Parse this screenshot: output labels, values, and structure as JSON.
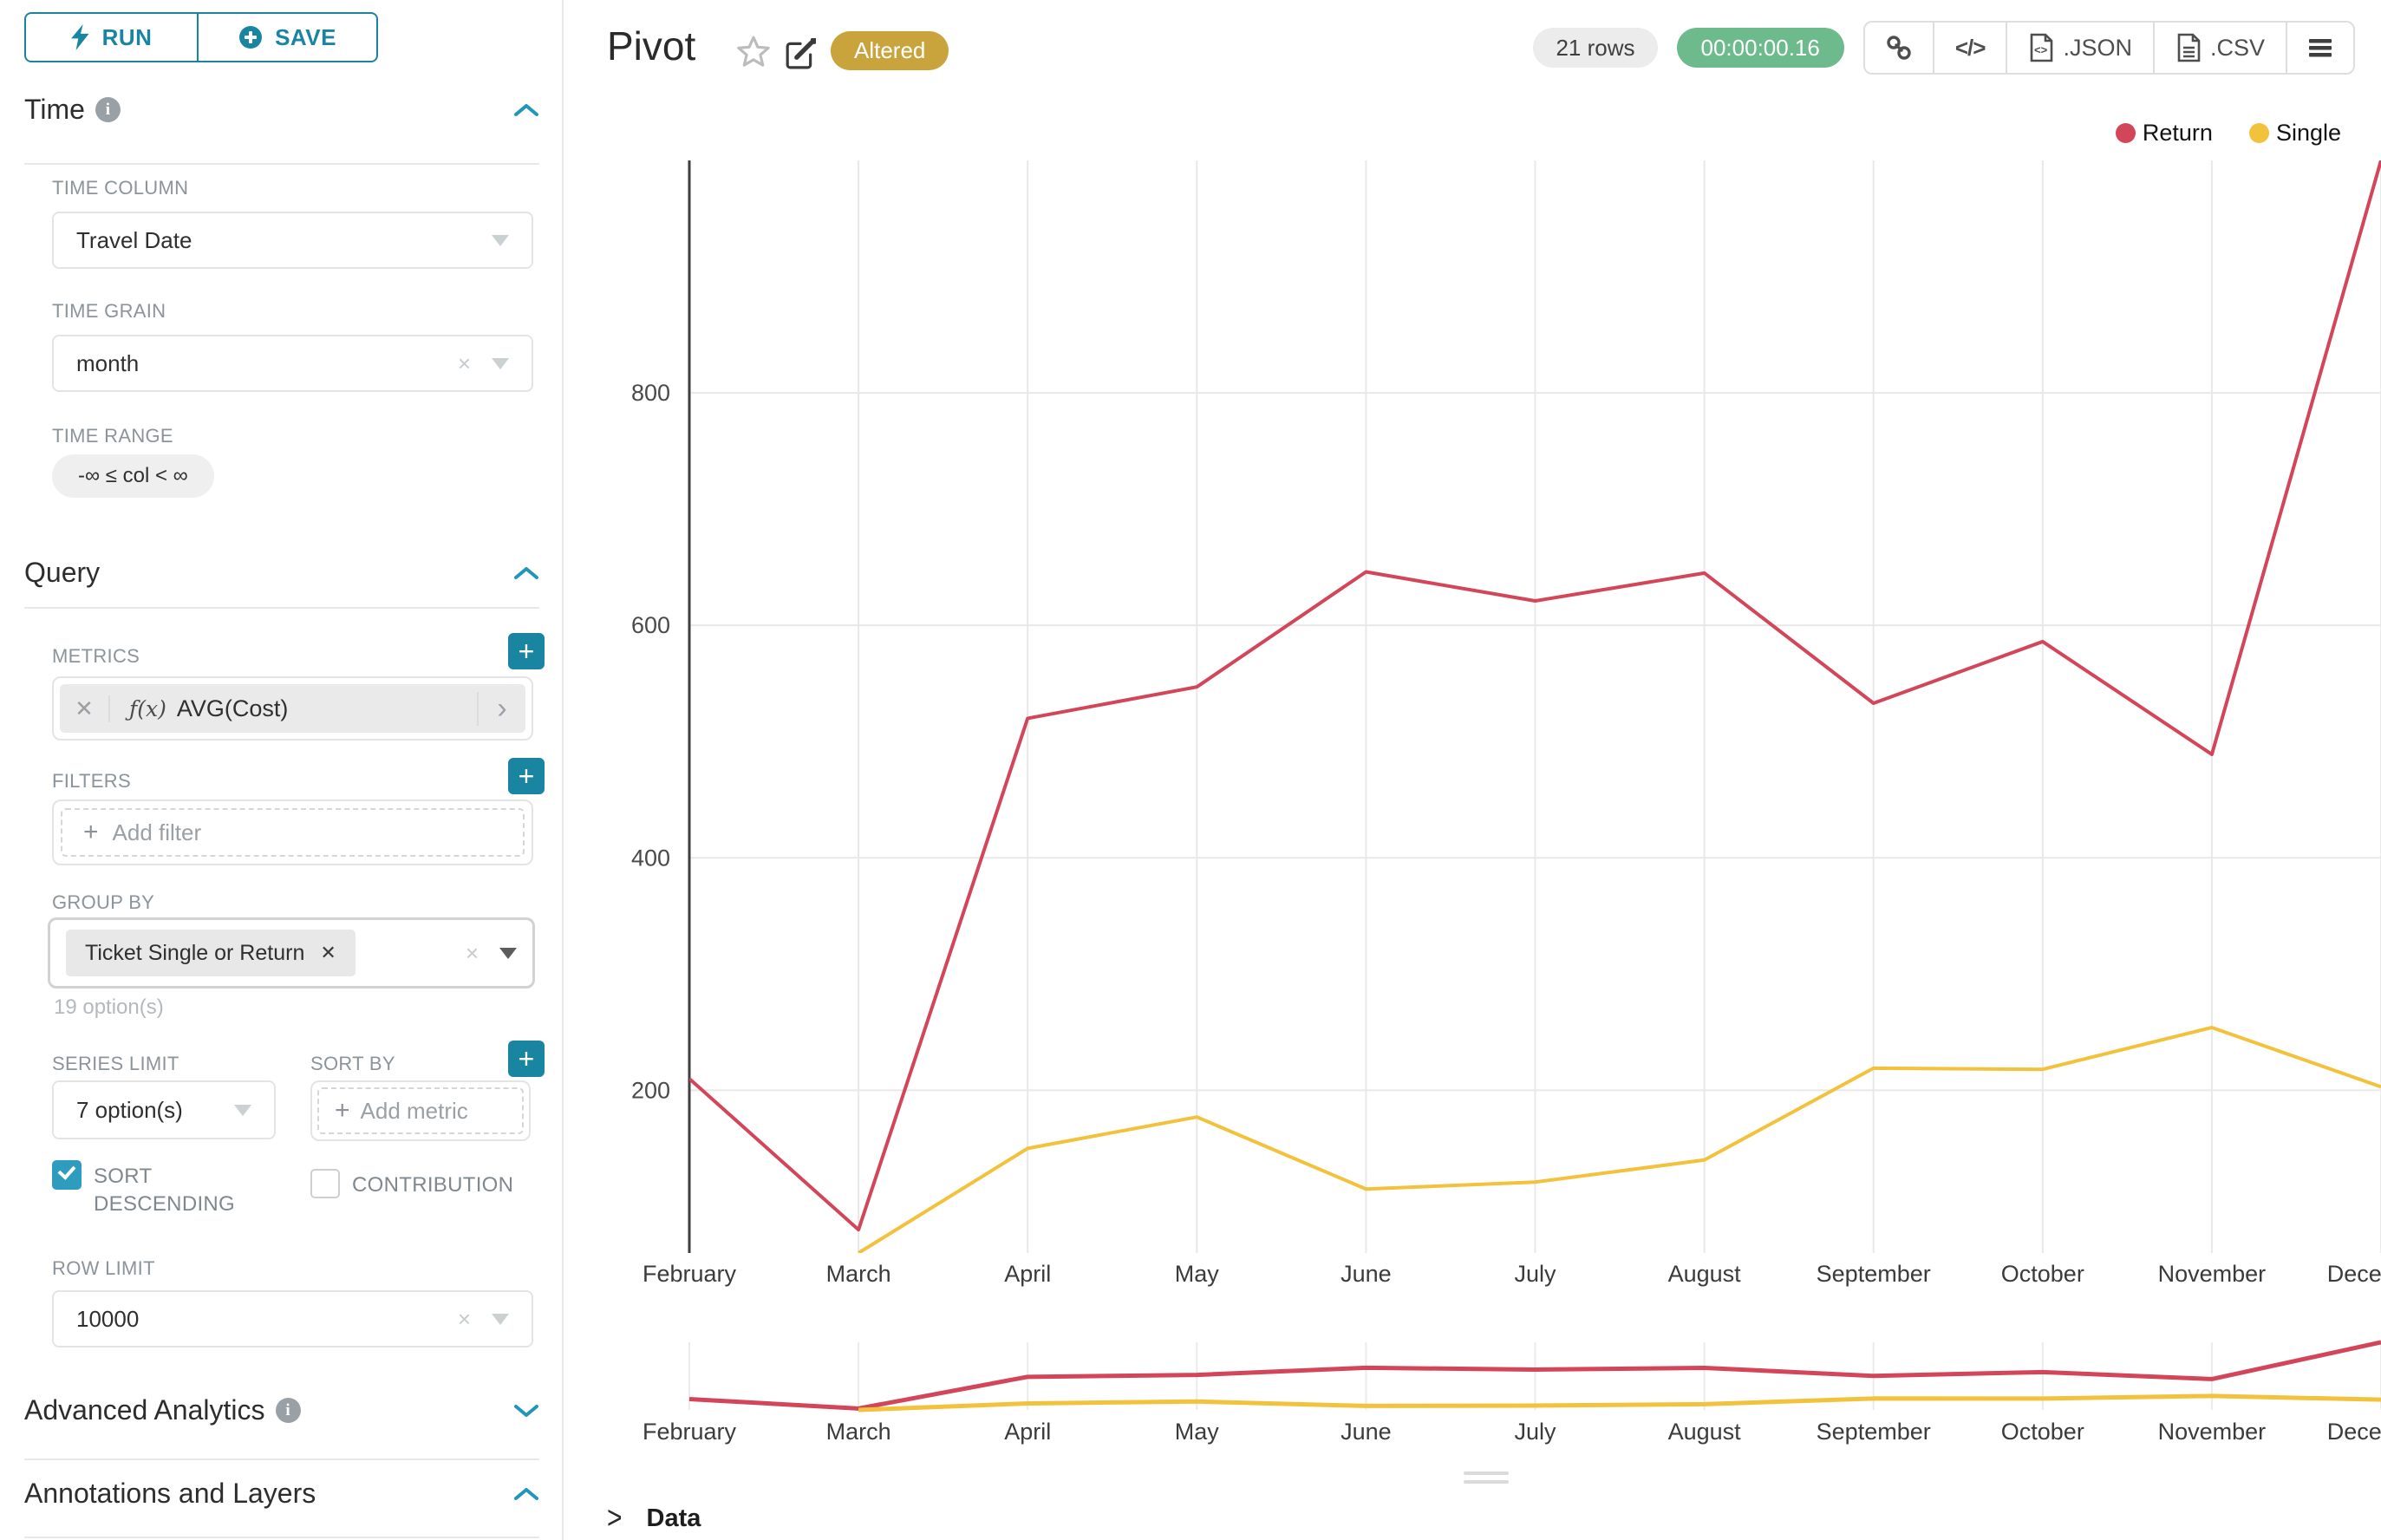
{
  "toolbar": {
    "run_label": "RUN",
    "save_label": "SAVE"
  },
  "sidebar": {
    "time": {
      "title": "Time",
      "time_column_label": "TIME COLUMN",
      "time_column_value": "Travel Date",
      "time_grain_label": "TIME GRAIN",
      "time_grain_value": "month",
      "time_range_label": "TIME RANGE",
      "time_range_value": "-∞ ≤ col < ∞"
    },
    "query": {
      "title": "Query",
      "metrics_label": "METRICS",
      "metric_fx": "ƒ(x)",
      "metric_name": "AVG(Cost)",
      "filters_label": "FILTERS",
      "add_filter_label": "Add filter",
      "group_by_label": "GROUP BY",
      "group_by_value": "Ticket Single or Return",
      "options_hint": "19 option(s)",
      "series_limit_label": "SERIES LIMIT",
      "series_limit_value": "7 option(s)",
      "sort_by_label": "SORT BY",
      "add_metric_label": "Add metric",
      "sort_descending_label": "SORT DESCENDING",
      "contribution_label": "CONTRIBUTION",
      "row_limit_label": "ROW LIMIT",
      "row_limit_value": "10000"
    },
    "advanced_title": "Advanced Analytics",
    "annotations_title": "Annotations and Layers"
  },
  "header": {
    "title": "Pivot",
    "badge": "Altered",
    "row_count": "21 rows",
    "timer": "00:00:00.16",
    "json_label": ".JSON",
    "csv_label": ".CSV"
  },
  "footer": {
    "data_label": "Data"
  },
  "colors": {
    "accent_teal": "#1a85a0",
    "badge_gold": "#c9a43c",
    "timer_green": "#6dba8c",
    "return_red": "#d3465a",
    "single_yellow": "#f2c23d"
  },
  "chart_data": {
    "type": "line",
    "title": "Pivot",
    "categories": [
      "February",
      "March",
      "April",
      "May",
      "June",
      "July",
      "August",
      "September",
      "October",
      "November",
      "December"
    ],
    "series": [
      {
        "name": "Return",
        "color": "#d3465a",
        "values": [
          210,
          80,
          520,
          547,
          646,
          621,
          645,
          533,
          586,
          489,
          1000
        ]
      },
      {
        "name": "Single",
        "color": "#f2c23d",
        "values": [
          null,
          60,
          150,
          177,
          115,
          121,
          140,
          219,
          218,
          254,
          203
        ]
      }
    ],
    "xlabel": "",
    "ylabel": "",
    "ytick_values": [
      200,
      400,
      600,
      800
    ],
    "ylim": [
      60,
      1000
    ],
    "grid": true,
    "legend_position": "top-right",
    "has_range_selector": true
  }
}
